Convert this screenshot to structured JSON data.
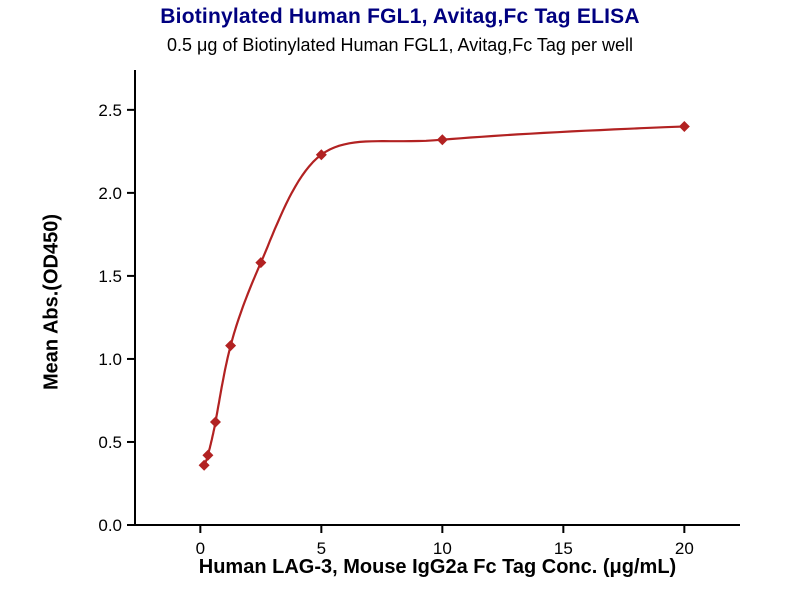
{
  "chart_data": {
    "type": "line",
    "title": "Biotinylated Human FGL1, Avitag,Fc Tag ELISA",
    "subtitle": "0.5 μg of Biotinylated Human FGL1, Avitag,Fc Tag per well",
    "xlabel": "Human LAG-3, Mouse IgG2a Fc Tag Conc. (μg/mL)",
    "ylabel": "Mean Abs.(OD450)",
    "x": [
      0.156,
      0.313,
      0.625,
      1.25,
      2.5,
      5,
      10,
      20
    ],
    "y": [
      0.36,
      0.42,
      0.62,
      1.08,
      1.58,
      2.23,
      2.32,
      2.4
    ],
    "xlim": [
      -2.7,
      22.3
    ],
    "ylim": [
      0,
      2.74
    ],
    "xticks": [
      "0",
      "5",
      "10",
      "15",
      "20"
    ],
    "yticks": [
      "0.0",
      "0.5",
      "1.0",
      "1.5",
      "2.0",
      "2.5"
    ],
    "grid": false,
    "legend": false,
    "marker": "diamond",
    "colors": {
      "series": "#b22222",
      "title": "#000080",
      "subtitle": "#000000",
      "axis": "#000000",
      "background": "#ffffff"
    }
  }
}
